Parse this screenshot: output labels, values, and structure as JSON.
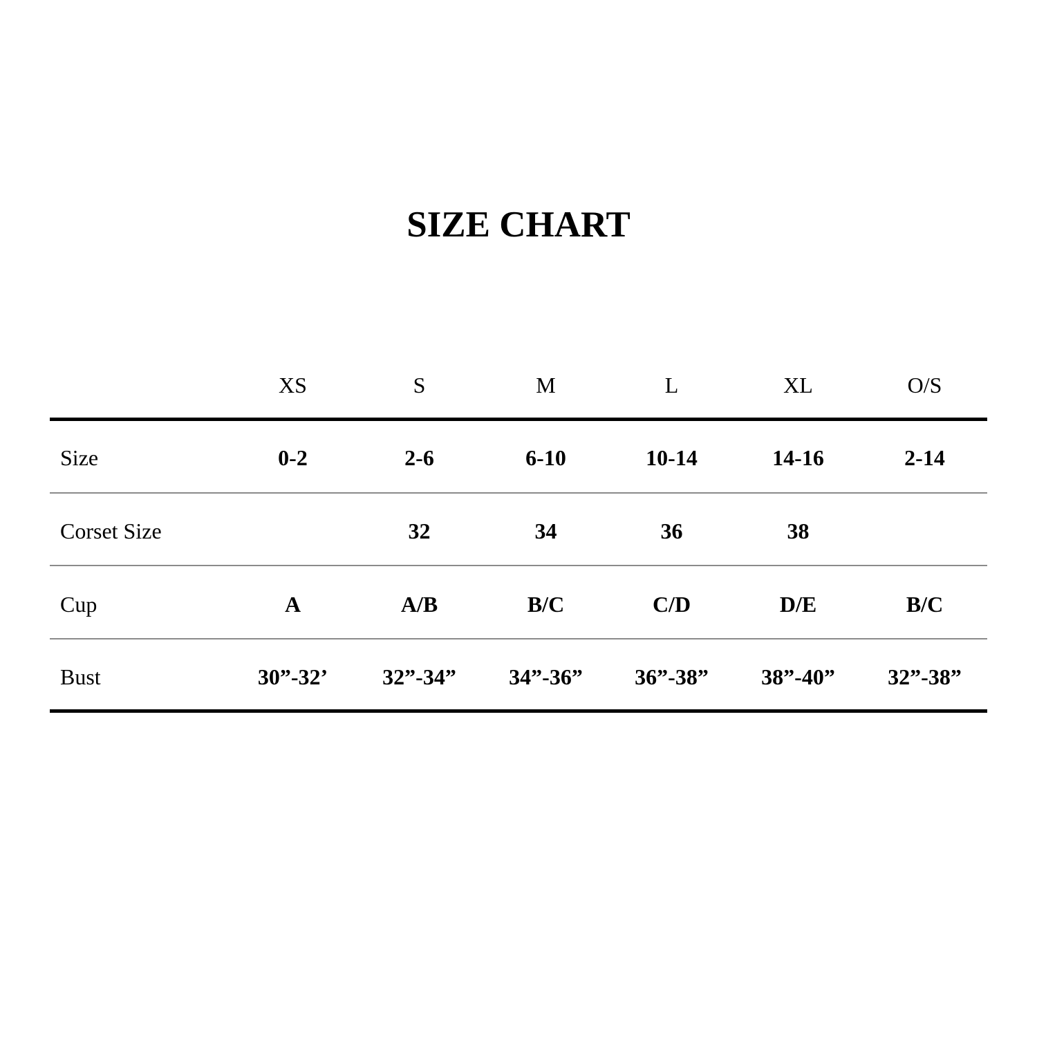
{
  "title": "SIZE CHART",
  "columns": [
    "XS",
    "S",
    "M",
    "L",
    "XL",
    "O/S"
  ],
  "rows": [
    {
      "label": "Size",
      "values": [
        "0-2",
        "2-6",
        "6-10",
        "10-14",
        "14-16",
        "2-14"
      ]
    },
    {
      "label": "Corset Size",
      "values": [
        "",
        "32",
        "34",
        "36",
        "38",
        ""
      ]
    },
    {
      "label": "Cup",
      "values": [
        "A",
        "A/B",
        "B/C",
        "C/D",
        "D/E",
        "B/C"
      ]
    },
    {
      "label": "Bust",
      "values": [
        "30”-32’",
        "32”-34”",
        "34”-36”",
        "36”-38”",
        "38”-40”",
        "32”-38”"
      ]
    }
  ]
}
